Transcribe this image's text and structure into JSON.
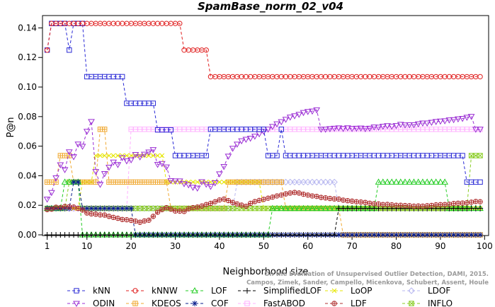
{
  "chart_data": {
    "type": "line",
    "title": "SpamBase_norm_02_v04",
    "xlabel": "Neighborhood size",
    "ylabel": "P@n",
    "xlim": [
      1,
      100
    ],
    "ylim": [
      0,
      0.145
    ],
    "x_ticks": [
      1,
      10,
      20,
      30,
      40,
      50,
      60,
      70,
      80,
      90,
      100
    ],
    "y_ticks": [
      0.0,
      0.02,
      0.04,
      0.06,
      0.08,
      0.1,
      0.12,
      0.14
    ],
    "y_tick_labels": [
      "0.00",
      "0.02",
      "0.04",
      "0.06",
      "0.08",
      "0.10",
      "0.12",
      "0.14"
    ],
    "grid": false,
    "legend_position": "bottom",
    "credit_lines": [
      "Campos, Zimek, Sander, Campello, Micenkova, Schubert, Assent, Houle",
      "On the Evaluation of Unsupervised Outlier Detection, DAMI, 2015."
    ],
    "series": [
      {
        "name": "kNN",
        "color": "#2b2bd6",
        "marker": "square",
        "segments": [
          [
            1,
            0.125
          ],
          [
            2,
            0.143
          ],
          [
            6,
            0.125
          ],
          [
            7,
            0.143
          ],
          [
            10,
            0.107
          ],
          [
            19,
            0.089
          ],
          [
            26,
            0.071
          ],
          [
            30,
            0.0536
          ],
          [
            38,
            0.0714
          ],
          [
            51,
            0.0536
          ],
          [
            54,
            0.0714
          ],
          [
            55,
            0.0536
          ],
          [
            96,
            0.0357
          ],
          [
            99,
            0.0357
          ]
        ]
      },
      {
        "name": "kNNW",
        "color": "#e01f1f",
        "marker": "circle",
        "segments": [
          [
            1,
            0.125
          ],
          [
            2,
            0.143
          ],
          [
            32,
            0.125
          ],
          [
            38,
            0.107
          ],
          [
            99,
            0.107
          ]
        ]
      },
      {
        "name": "LOF",
        "color": "#22cc22",
        "marker": "triangle-up",
        "segments": [
          [
            1,
            0.0179
          ],
          [
            5,
            0.0357
          ],
          [
            9,
            0.0
          ],
          [
            52,
            0.0179
          ],
          [
            76,
            0.0357
          ],
          [
            92,
            0.0179
          ],
          [
            99,
            0.0179
          ]
        ]
      },
      {
        "name": "SimplifiedLOF",
        "color": "#000000",
        "marker": "plus",
        "segments": [
          [
            1,
            0.0
          ],
          [
            67,
            0.0179
          ],
          [
            99,
            0.0179
          ]
        ]
      },
      {
        "name": "LoOP",
        "color": "#e6e600",
        "marker": "x",
        "segments": [
          [
            1,
            0.0179
          ],
          [
            9,
            0.0357
          ],
          [
            12,
            0.0536
          ],
          [
            28,
            0.0357
          ],
          [
            50,
            0.0179
          ],
          [
            99,
            0.0179
          ]
        ]
      },
      {
        "name": "LDOF",
        "color": "#b8b8f0",
        "marker": "diamond",
        "segments": [
          [
            1,
            0.0179
          ],
          [
            20,
            0.0179
          ],
          [
            44,
            0.0357
          ],
          [
            67,
            0.0179
          ],
          [
            99,
            0.0179
          ]
        ]
      },
      {
        "name": "ODIN",
        "color": "#9b2fd4",
        "marker": "triangle-down",
        "points": [
          [
            1,
            0.0241
          ],
          [
            2,
            0.0286
          ],
          [
            3,
            0.0385
          ],
          [
            4,
            0.0474
          ],
          [
            5,
            0.0441
          ],
          [
            6,
            0.0561
          ],
          [
            7,
            0.0528
          ],
          [
            8,
            0.0614
          ],
          [
            9,
            0.0599
          ],
          [
            10,
            0.07
          ],
          [
            11,
            0.0766
          ],
          [
            12,
            0.0428
          ],
          [
            13,
            0.0341
          ],
          [
            14,
            0.0414
          ],
          [
            15,
            0.0457
          ],
          [
            16,
            0.0492
          ],
          [
            17,
            0.0475
          ],
          [
            18,
            0.0522
          ],
          [
            19,
            0.05
          ],
          [
            20,
            0.0507
          ],
          [
            21,
            0.0543
          ],
          [
            22,
            0.0527
          ],
          [
            23,
            0.0545
          ],
          [
            24,
            0.056
          ],
          [
            25,
            0.0576
          ],
          [
            26,
            0.0476
          ],
          [
            27,
            0.0482
          ],
          [
            28,
            0.0459
          ],
          [
            29,
            0.0366
          ],
          [
            30,
            0.0364
          ],
          [
            31,
            0.0364
          ],
          [
            32,
            0.0346
          ],
          [
            33,
            0.0338
          ],
          [
            34,
            0.0321
          ],
          [
            35,
            0.0316
          ],
          [
            36,
            0.0359
          ],
          [
            37,
            0.0342
          ],
          [
            38,
            0.0327
          ],
          [
            39,
            0.0352
          ],
          [
            40,
            0.0412
          ],
          [
            41,
            0.0462
          ],
          [
            42,
            0.0532
          ],
          [
            43,
            0.0585
          ],
          [
            44,
            0.0613
          ],
          [
            45,
            0.0636
          ],
          [
            46,
            0.0646
          ],
          [
            47,
            0.0653
          ],
          [
            48,
            0.0667
          ],
          [
            49,
            0.0683
          ],
          [
            50,
            0.07
          ],
          [
            51,
            0.0715
          ],
          [
            52,
            0.0733
          ],
          [
            53,
            0.0751
          ],
          [
            54,
            0.0765
          ],
          [
            55,
            0.0781
          ],
          [
            56,
            0.0796
          ],
          [
            57,
            0.0805
          ],
          [
            58,
            0.0815
          ],
          [
            59,
            0.0827
          ],
          [
            60,
            0.0834
          ],
          [
            61,
            0.0837
          ],
          [
            62,
            0.0845
          ],
          [
            63,
            0.0714
          ],
          [
            64,
            0.0714
          ],
          [
            65,
            0.0718
          ],
          [
            66,
            0.0721
          ],
          [
            67,
            0.0723
          ],
          [
            68,
            0.0719
          ],
          [
            69,
            0.0724
          ],
          [
            70,
            0.0719
          ],
          [
            71,
            0.0721
          ],
          [
            72,
            0.0722
          ],
          [
            73,
            0.0718
          ],
          [
            74,
            0.0721
          ],
          [
            75,
            0.0729
          ],
          [
            76,
            0.0728
          ],
          [
            77,
            0.0734
          ],
          [
            78,
            0.0738
          ],
          [
            79,
            0.0734
          ],
          [
            80,
            0.0739
          ],
          [
            81,
            0.0747
          ],
          [
            82,
            0.0743
          ],
          [
            83,
            0.0744
          ],
          [
            84,
            0.0744
          ],
          [
            85,
            0.0751
          ],
          [
            86,
            0.0756
          ],
          [
            87,
            0.0756
          ],
          [
            88,
            0.0761
          ],
          [
            89,
            0.0766
          ],
          [
            90,
            0.0769
          ],
          [
            91,
            0.0771
          ],
          [
            92,
            0.0777
          ],
          [
            93,
            0.0779
          ],
          [
            94,
            0.0784
          ],
          [
            95,
            0.0787
          ],
          [
            96,
            0.0795
          ],
          [
            97,
            0.0801
          ],
          [
            98,
            0.0714
          ],
          [
            99,
            0.0714
          ]
        ]
      },
      {
        "name": "KDEOS",
        "color": "#f0a830",
        "marker": "square-cross",
        "segments": [
          [
            1,
            0.0357
          ],
          [
            4,
            0.0536
          ],
          [
            7,
            0.0357
          ],
          [
            13,
            0.0714
          ],
          [
            15,
            0.0357
          ],
          [
            29,
            0.0179
          ],
          [
            42,
            0.0357
          ],
          [
            55,
            0.0179
          ],
          [
            68,
            0.0
          ],
          [
            99,
            0.0
          ]
        ]
      },
      {
        "name": "COF",
        "color": "#0a1e8c",
        "marker": "asterisk",
        "segments": [
          [
            1,
            0.0179
          ],
          [
            7,
            0.0357
          ],
          [
            9,
            0.0179
          ],
          [
            21,
            0.0
          ],
          [
            99,
            0.0
          ]
        ]
      },
      {
        "name": "FastABOD",
        "color": "#ffb0ff",
        "marker": "square-plus",
        "segments": [
          [
            1,
            0.0179
          ],
          [
            20,
            0.0714
          ],
          [
            99,
            0.0714
          ]
        ]
      },
      {
        "name": "LDF",
        "color": "#b03030",
        "marker": "circle-plus",
        "points": [
          [
            1,
            0.0171
          ],
          [
            2,
            0.0174
          ],
          [
            3,
            0.0187
          ],
          [
            4,
            0.0184
          ],
          [
            5,
            0.0192
          ],
          [
            6,
            0.019
          ],
          [
            7,
            0.0188
          ],
          [
            8,
            0.0179
          ],
          [
            9,
            0.0168
          ],
          [
            10,
            0.0148
          ],
          [
            11,
            0.0142
          ],
          [
            12,
            0.014
          ],
          [
            13,
            0.0135
          ],
          [
            14,
            0.0134
          ],
          [
            15,
            0.0125
          ],
          [
            16,
            0.0118
          ],
          [
            17,
            0.0112
          ],
          [
            18,
            0.0104
          ],
          [
            19,
            0.0102
          ],
          [
            20,
            0.0098
          ],
          [
            21,
            0.0093
          ],
          [
            22,
            0.0085
          ],
          [
            23,
            0.0094
          ],
          [
            24,
            0.0099
          ],
          [
            25,
            0.0125
          ],
          [
            26,
            0.0153
          ],
          [
            27,
            0.0171
          ],
          [
            28,
            0.0184
          ],
          [
            29,
            0.0174
          ],
          [
            30,
            0.0161
          ],
          [
            31,
            0.016
          ],
          [
            32,
            0.0158
          ],
          [
            33,
            0.0176
          ],
          [
            34,
            0.0184
          ],
          [
            35,
            0.0188
          ],
          [
            36,
            0.0195
          ],
          [
            37,
            0.0205
          ],
          [
            38,
            0.0213
          ],
          [
            39,
            0.0224
          ],
          [
            40,
            0.0236
          ],
          [
            41,
            0.0242
          ],
          [
            42,
            0.0232
          ],
          [
            43,
            0.0219
          ],
          [
            44,
            0.0209
          ],
          [
            45,
            0.0201
          ],
          [
            46,
            0.0193
          ],
          [
            47,
            0.0213
          ],
          [
            48,
            0.0225
          ],
          [
            49,
            0.0233
          ],
          [
            50,
            0.024
          ],
          [
            51,
            0.0248
          ],
          [
            52,
            0.0255
          ],
          [
            53,
            0.0263
          ],
          [
            54,
            0.0269
          ],
          [
            55,
            0.0277
          ],
          [
            56,
            0.0283
          ],
          [
            57,
            0.0287
          ],
          [
            58,
            0.0283
          ],
          [
            59,
            0.0275
          ],
          [
            60,
            0.0269
          ],
          [
            61,
            0.0263
          ],
          [
            62,
            0.026
          ],
          [
            63,
            0.0253
          ],
          [
            64,
            0.025
          ],
          [
            65,
            0.0246
          ],
          [
            66,
            0.0243
          ],
          [
            67,
            0.0242
          ],
          [
            68,
            0.0235
          ],
          [
            69,
            0.0231
          ],
          [
            70,
            0.0228
          ],
          [
            71,
            0.0224
          ],
          [
            72,
            0.0222
          ],
          [
            73,
            0.0219
          ],
          [
            74,
            0.0214
          ],
          [
            75,
            0.021
          ],
          [
            76,
            0.0209
          ],
          [
            77,
            0.0205
          ],
          [
            78,
            0.0206
          ],
          [
            79,
            0.0203
          ],
          [
            80,
            0.02
          ],
          [
            81,
            0.02
          ],
          [
            82,
            0.0198
          ],
          [
            83,
            0.0197
          ],
          [
            84,
            0.0194
          ],
          [
            85,
            0.0195
          ],
          [
            86,
            0.0194
          ],
          [
            87,
            0.0197
          ],
          [
            88,
            0.0199
          ],
          [
            89,
            0.0203
          ],
          [
            90,
            0.0204
          ],
          [
            91,
            0.0205
          ],
          [
            92,
            0.0207
          ],
          [
            93,
            0.0212
          ],
          [
            94,
            0.0214
          ],
          [
            95,
            0.0215
          ],
          [
            96,
            0.0217
          ],
          [
            97,
            0.0221
          ],
          [
            98,
            0.0226
          ],
          [
            99,
            0.0224
          ]
        ]
      },
      {
        "name": "INFLO",
        "color": "#88cc22",
        "marker": "square-x",
        "segments": [
          [
            1,
            0.0179
          ],
          [
            6,
            0.0357
          ],
          [
            9,
            0.0179
          ],
          [
            97,
            0.0536
          ],
          [
            99,
            0.0536
          ]
        ]
      }
    ]
  }
}
